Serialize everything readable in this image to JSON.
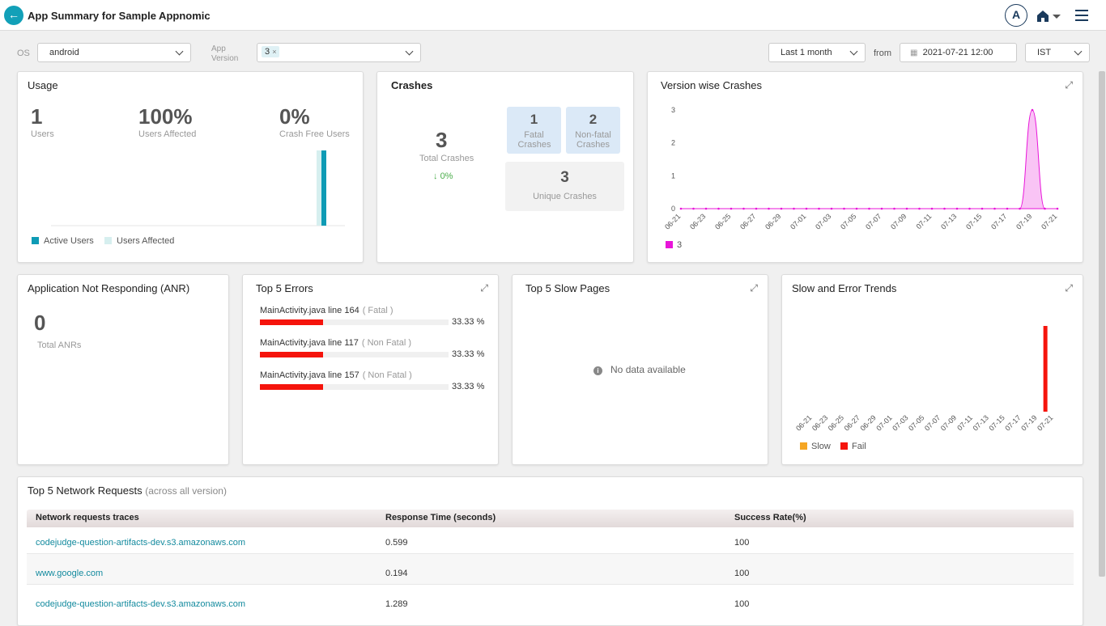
{
  "header": {
    "title": "App Summary for Sample Appnomic",
    "avatar": "A"
  },
  "filters": {
    "os_label": "OS",
    "os_value": "android",
    "version_label": "App Version",
    "version_chip": "3",
    "chip_remove": "×",
    "range": "Last 1 month",
    "from_label": "from",
    "from_value": "2021-07-21 12:00",
    "timezone": "IST"
  },
  "usage": {
    "title": "Usage",
    "stats": [
      {
        "value": 1,
        "label": "Users"
      },
      {
        "value": "100%",
        "label": "Users Affected"
      },
      {
        "value": "0%",
        "label": "Crash Free Users"
      }
    ],
    "chart": {
      "type": "bar",
      "series": [
        {
          "name": "Active Users",
          "color": "#0e9bb5",
          "values": [
            1
          ]
        },
        {
          "name": "Users Affected",
          "color": "#d6efef",
          "values": [
            1
          ]
        }
      ]
    }
  },
  "crashes": {
    "title": "Crashes",
    "total": 3,
    "total_label": "Total Crashes",
    "change": "0%",
    "fatal": 1,
    "fatal_label": "Fatal Crashes",
    "nonfatal": 2,
    "nonfatal_label": "Non-fatal Crashes",
    "unique": 3,
    "unique_label": "Unique Crashes"
  },
  "version_crashes": {
    "title": "Version wise Crashes",
    "chart": {
      "type": "area",
      "categories": [
        "06-21",
        null,
        "06-23",
        null,
        "06-25",
        null,
        "06-27",
        null,
        "06-29",
        null,
        "07-01",
        null,
        "07-03",
        null,
        "07-05",
        null,
        "07-07",
        null,
        "07-09",
        null,
        "07-11",
        null,
        "07-13",
        null,
        "07-15",
        null,
        "07-17",
        null,
        "07-19",
        null,
        "07-21"
      ],
      "series": [
        {
          "name": "3",
          "color": "#e815d9",
          "values": [
            0,
            0,
            0,
            0,
            0,
            0,
            0,
            0,
            0,
            0,
            0,
            0,
            0,
            0,
            0,
            0,
            0,
            0,
            0,
            0,
            0,
            0,
            0,
            0,
            0,
            0,
            0,
            0,
            3,
            0,
            0
          ]
        }
      ],
      "ylim": [
        0,
        3
      ],
      "yticks": [
        0,
        1,
        2,
        3
      ]
    }
  },
  "anr": {
    "title": "Application Not Responding (ANR)",
    "value": 0,
    "label": "Total ANRs"
  },
  "errors": {
    "title": "Top 5 Errors",
    "items": [
      {
        "name": "MainActivity.java line 164",
        "kind": "( Fatal )",
        "value": 33.33,
        "value_label": "33.33 %"
      },
      {
        "name": "MainActivity.java line 117",
        "kind": "( Non Fatal )",
        "value": 33.33,
        "value_label": "33.33 %"
      },
      {
        "name": "MainActivity.java line 157",
        "kind": "( Non Fatal )",
        "value": 33.33,
        "value_label": "33.33 %"
      }
    ]
  },
  "slow_pages": {
    "title": "Top 5 Slow Pages",
    "empty": "No data available"
  },
  "trends": {
    "title": "Slow and Error Trends",
    "chart": {
      "type": "bar",
      "categories": [
        "06-21",
        null,
        "06-23",
        null,
        "06-25",
        null,
        "06-27",
        null,
        "06-29",
        null,
        "07-01",
        null,
        "07-03",
        null,
        "07-05",
        null,
        "07-07",
        null,
        "07-09",
        null,
        "07-11",
        null,
        "07-13",
        null,
        "07-15",
        null,
        "07-17",
        null,
        "07-19",
        null,
        "07-21"
      ],
      "series": [
        {
          "name": "Slow",
          "color": "#f5a623",
          "values": [
            0,
            0,
            0,
            0,
            0,
            0,
            0,
            0,
            0,
            0,
            0,
            0,
            0,
            0,
            0,
            0,
            0,
            0,
            0,
            0,
            0,
            0,
            0,
            0,
            0,
            0,
            0,
            0,
            0,
            0,
            0
          ]
        },
        {
          "name": "Fail",
          "color": "#f5140c",
          "values": [
            0,
            0,
            0,
            0,
            0,
            0,
            0,
            0,
            0,
            0,
            0,
            0,
            0,
            0,
            0,
            0,
            0,
            0,
            0,
            0,
            0,
            0,
            0,
            0,
            0,
            0,
            0,
            0,
            1,
            0,
            0
          ]
        }
      ]
    }
  },
  "network": {
    "title": "Top 5 Network Requests",
    "subtitle": "(across all version)",
    "columns": [
      "Network requests traces",
      "Response Time (seconds)",
      "Success Rate(%)"
    ],
    "rows": [
      [
        "codejudge-question-artifacts-dev.s3.amazonaws.com",
        0.599,
        100
      ],
      [
        "www.google.com",
        0.194,
        100
      ],
      [
        "codejudge-question-artifacts-dev.s3.amazonaws.com",
        1.289,
        100
      ]
    ]
  }
}
